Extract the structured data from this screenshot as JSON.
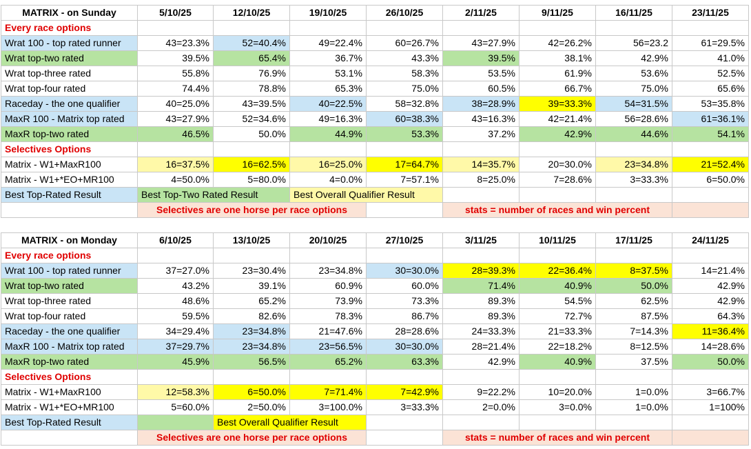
{
  "tables": [
    {
      "title": "MATRIX - on Sunday",
      "dates": [
        "5/10/25",
        "12/10/25",
        "19/10/25",
        "26/10/25",
        "2/11/25",
        "9/11/25",
        "16/11/25",
        "23/11/25"
      ],
      "sections": [
        {
          "heading": "Every race options",
          "rows": [
            {
              "label": "Wrat 100 - top rated runner",
              "values": [
                "43=23.3%",
                "52=40.4%",
                "49=22.4%",
                "60=26.7%",
                "43=27.9%",
                "42=26.2%",
                "56=23.2",
                "61=29.5%"
              ]
            },
            {
              "label": "Wrat top-two rated",
              "values": [
                "39.5%",
                "65.4%",
                "36.7%",
                "43.3%",
                "39.5%",
                "38.1%",
                "42.9%",
                "41.0%"
              ]
            },
            {
              "label": "Wrat top-three rated",
              "values": [
                "55.8%",
                "76.9%",
                "53.1%",
                "58.3%",
                "53.5%",
                "61.9%",
                "53.6%",
                "52.5%"
              ]
            },
            {
              "label": "Wrat top-four rated",
              "values": [
                "74.4%",
                "78.8%",
                "65.3%",
                "75.0%",
                "60.5%",
                "66.7%",
                "75.0%",
                "65.6%"
              ]
            },
            {
              "label": "Raceday - the one qualifier",
              "values": [
                "40=25.0%",
                "43=39.5%",
                "40=22.5%",
                "58=32.8%",
                "38=28.9%",
                "39=33.3%",
                "54=31.5%",
                "53=35.8%"
              ]
            },
            {
              "label": "MaxR 100 - Matrix top rated",
              "values": [
                "43=27.9%",
                "52=34.6%",
                "49=16.3%",
                "60=38.3%",
                "43=16.3%",
                "42=21.4%",
                "56=28.6%",
                "61=36.1%"
              ]
            },
            {
              "label": "MaxR top-two rated",
              "values": [
                "46.5%",
                "50.0%",
                "44.9%",
                "53.3%",
                "37.2%",
                "42.9%",
                "44.6%",
                "54.1%"
              ]
            }
          ]
        },
        {
          "heading": "Selectives Options",
          "rows": [
            {
              "label": "Matrix - W1+MaxR100",
              "values": [
                "16=37.5%",
                "16=62.5%",
                "16=25.0%",
                "17=64.7%",
                "14=35.7%",
                "20=30.0%",
                "23=34.8%",
                "21=52.4%"
              ]
            },
            {
              "label": "Matrix - W1+*EO+MR100",
              "values": [
                "4=50.0%",
                "5=80.0%",
                "4=0.0%",
                "7=57.1%",
                "8=25.0%",
                "7=28.6%",
                "3=33.3%",
                "6=50.0%"
              ]
            }
          ]
        }
      ],
      "legend": [
        "Best Top-Rated Result",
        "Best Top-Two Rated Result",
        "Best Overall Qualifier Result"
      ],
      "notes": [
        "Selectives are one horse per race options",
        "stats = number of races and win percent"
      ]
    },
    {
      "title": "MATRIX - on Monday",
      "dates": [
        "6/10/25",
        "13/10/25",
        "20/10/25",
        "27/10/25",
        "3/11/25",
        "10/11/25",
        "17/11/25",
        "24/11/25"
      ],
      "sections": [
        {
          "heading": "Every race options",
          "rows": [
            {
              "label": "Wrat 100 - top rated runner",
              "values": [
                "37=27.0%",
                "23=30.4%",
                "23=34.8%",
                "30=30.0%",
                "28=39.3%",
                "22=36.4%",
                "8=37.5%",
                "14=21.4%"
              ]
            },
            {
              "label": "Wrat top-two rated",
              "values": [
                "43.2%",
                "39.1%",
                "60.9%",
                "60.0%",
                "71.4%",
                "40.9%",
                "50.0%",
                "42.9%"
              ]
            },
            {
              "label": "Wrat top-three rated",
              "values": [
                "48.6%",
                "65.2%",
                "73.9%",
                "73.3%",
                "89.3%",
                "54.5%",
                "62.5%",
                "42.9%"
              ]
            },
            {
              "label": "Wrat top-four rated",
              "values": [
                "59.5%",
                "82.6%",
                "78.3%",
                "86.7%",
                "89.3%",
                "72.7%",
                "87.5%",
                "64.3%"
              ]
            },
            {
              "label": "Raceday - the one qualifier",
              "values": [
                "34=29.4%",
                "23=34.8%",
                "21=47.6%",
                "28=28.6%",
                "24=33.3%",
                "21=33.3%",
                "7=14.3%",
                "11=36.4%"
              ]
            },
            {
              "label": "MaxR 100 - Matrix top rated",
              "values": [
                "37=29.7%",
                "23=34.8%",
                "23=56.5%",
                "30=30.0%",
                "28=21.4%",
                "22=18.2%",
                "8=12.5%",
                "14=28.6%"
              ]
            },
            {
              "label": "MaxR top-two rated",
              "values": [
                "45.9%",
                "56.5%",
                "65.2%",
                "63.3%",
                "42.9%",
                "40.9%",
                "37.5%",
                "50.0%"
              ]
            }
          ]
        },
        {
          "heading": "Selectives Options",
          "rows": [
            {
              "label": "Matrix - W1+MaxR100",
              "values": [
                "12=58.3%",
                "6=50.0%",
                "7=71.4%",
                "7=42.9%",
                "9=22.2%",
                "10=20.0%",
                "1=0.0%",
                "3=66.7%"
              ]
            },
            {
              "label": "Matrix - W1+*EO+MR100",
              "values": [
                "5=60.0%",
                "2=50.0%",
                "3=100.0%",
                "3=33.3%",
                "2=0.0%",
                "3=0.0%",
                "1=0.0%",
                "1=100%"
              ]
            }
          ]
        }
      ],
      "legend": [
        "Best Top-Rated Result",
        "Best Overall Qualifier Result"
      ],
      "notes": [
        "Selectives are one horse per race options",
        "stats = number of races and win percent"
      ]
    }
  ]
}
